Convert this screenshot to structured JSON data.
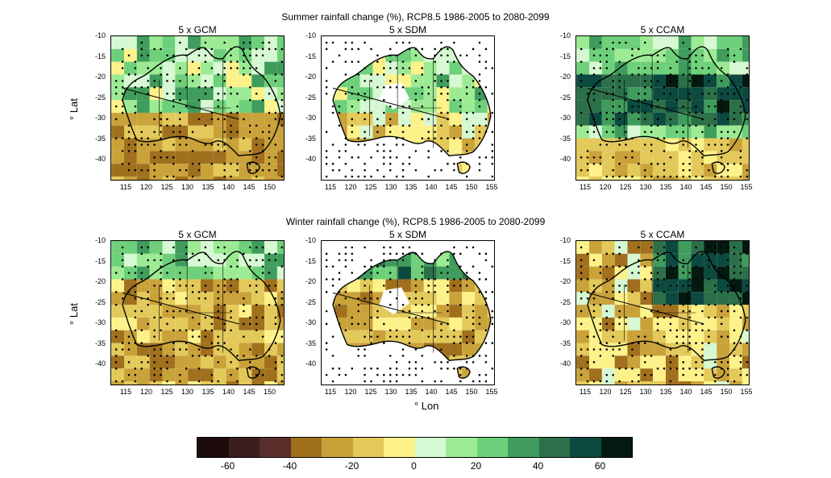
{
  "rows": [
    {
      "title": "Summer rainfall change (%), RCP8.5 1986-2005 to 2080-2099",
      "panels": [
        {
          "label": "5 x GCM",
          "style": "gcm-summer"
        },
        {
          "label": "5 x SDM",
          "style": "sdm-summer"
        },
        {
          "label": "5 x CCAM",
          "style": "ccam-summer"
        }
      ]
    },
    {
      "title": "Winter rainfall change (%), RCP8.5 1986-2005 to 2080-2099",
      "panels": [
        {
          "label": "5 x GCM",
          "style": "gcm-winter"
        },
        {
          "label": "5 x SDM",
          "style": "sdm-winter"
        },
        {
          "label": "5 x CCAM",
          "style": "ccam-winter"
        }
      ]
    }
  ],
  "axes": {
    "lat_label": "° Lat",
    "lon_label": "° Lon",
    "lat_ticks": [
      "-10",
      "-15",
      "-20",
      "-25",
      "-30",
      "-35",
      "-40"
    ],
    "lon_ticks_gcm": [
      "115",
      "120",
      "125",
      "130",
      "135",
      "140",
      "145",
      "150"
    ],
    "lon_ticks_other": [
      "115",
      "120",
      "125",
      "130",
      "135",
      "140",
      "145",
      "150",
      "155"
    ]
  },
  "colorbar": {
    "colors": [
      "#1e0c0c",
      "#3b1f1f",
      "#5a2e2a",
      "#a0701e",
      "#c9a23a",
      "#e3c95a",
      "#fdf18a",
      "#d6f8d2",
      "#9ceb94",
      "#6ed07a",
      "#3f9c5c",
      "#2b7048",
      "#0c4a40",
      "#041a10"
    ],
    "tick_labels": [
      "-60",
      "-40",
      "-20",
      "0",
      "20",
      "40",
      "60"
    ]
  }
}
